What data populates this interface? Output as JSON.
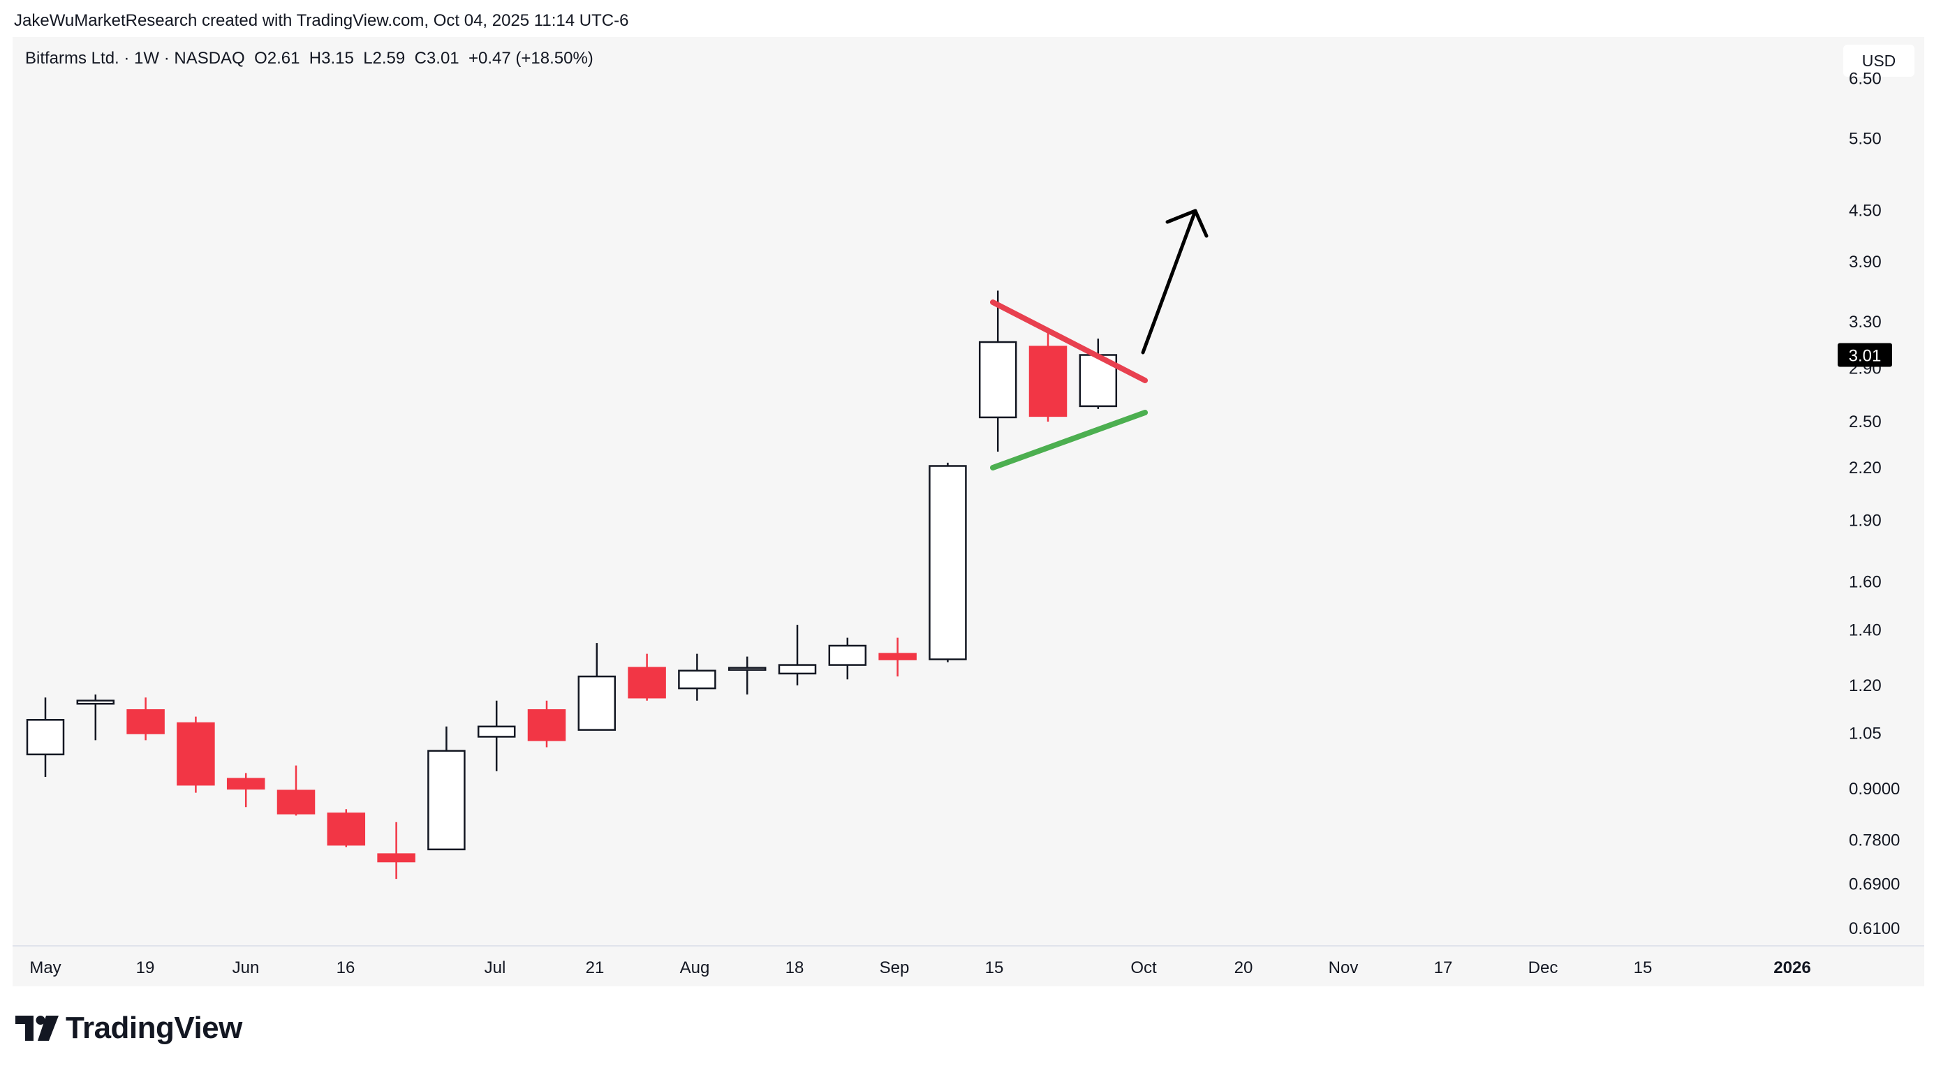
{
  "attribution": "JakeWuMarketResearch created with TradingView.com, Oct 04, 2025 11:14 UTC-6",
  "symbol": {
    "name": "Bitfarms Ltd. · 1W · NASDAQ",
    "open": "O2.61",
    "high": "H3.15",
    "low": "L2.59",
    "close": "C3.01",
    "change": "+0.47 (+18.50%)"
  },
  "currency": "USD",
  "brand": "TradingView",
  "colors": {
    "up": "#ffffff",
    "down": "#f23645",
    "outline": "#131722",
    "resistance": "#e8404f",
    "support": "#4caf50",
    "arrow": "#000000",
    "last_price_bg": "#000000"
  },
  "chart_data": {
    "type": "candlestick",
    "scale": "log",
    "interval": "1W",
    "y_ticks": [
      "6.50",
      "5.50",
      "4.50",
      "3.90",
      "3.30",
      "2.90",
      "2.50",
      "2.20",
      "1.90",
      "1.60",
      "1.40",
      "1.20",
      "1.05",
      "0.9000",
      "0.7800",
      "0.6900",
      "0.6100"
    ],
    "x_ticks": [
      "May",
      "19",
      "Jun",
      "16",
      "Jul",
      "21",
      "Aug",
      "18",
      "Sep",
      "15",
      "Oct",
      "20",
      "Nov",
      "17",
      "Dec",
      "15",
      "2026"
    ],
    "last_price": "3.01",
    "candles": [
      {
        "o": 0.99,
        "h": 1.16,
        "l": 0.93,
        "c": 1.09
      },
      {
        "o": 1.14,
        "h": 1.17,
        "l": 1.03,
        "c": 1.15
      },
      {
        "o": 1.12,
        "h": 1.16,
        "l": 1.03,
        "c": 1.05
      },
      {
        "o": 1.08,
        "h": 1.1,
        "l": 0.89,
        "c": 0.91
      },
      {
        "o": 0.925,
        "h": 0.94,
        "l": 0.855,
        "c": 0.9
      },
      {
        "o": 0.895,
        "h": 0.96,
        "l": 0.835,
        "c": 0.84
      },
      {
        "o": 0.84,
        "h": 0.85,
        "l": 0.765,
        "c": 0.77
      },
      {
        "o": 0.75,
        "h": 0.82,
        "l": 0.7,
        "c": 0.735
      },
      {
        "o": 0.76,
        "h": 1.07,
        "l": 0.76,
        "c": 1.0
      },
      {
        "o": 1.04,
        "h": 1.15,
        "l": 0.945,
        "c": 1.07
      },
      {
        "o": 1.12,
        "h": 1.15,
        "l": 1.01,
        "c": 1.03
      },
      {
        "o": 1.06,
        "h": 1.35,
        "l": 1.06,
        "c": 1.23
      },
      {
        "o": 1.26,
        "h": 1.31,
        "l": 1.15,
        "c": 1.16
      },
      {
        "o": 1.19,
        "h": 1.31,
        "l": 1.15,
        "c": 1.25
      },
      {
        "o": 1.26,
        "h": 1.3,
        "l": 1.17,
        "c": 1.26
      },
      {
        "o": 1.24,
        "h": 1.42,
        "l": 1.2,
        "c": 1.27
      },
      {
        "o": 1.27,
        "h": 1.37,
        "l": 1.22,
        "c": 1.34
      },
      {
        "o": 1.31,
        "h": 1.37,
        "l": 1.23,
        "c": 1.29
      },
      {
        "o": 1.29,
        "h": 2.23,
        "l": 1.28,
        "c": 2.21
      },
      {
        "o": 2.53,
        "h": 3.6,
        "l": 2.3,
        "c": 3.12
      },
      {
        "o": 3.08,
        "h": 3.2,
        "l": 2.5,
        "c": 2.54
      },
      {
        "o": 2.61,
        "h": 3.15,
        "l": 2.59,
        "c": 3.01
      }
    ]
  }
}
